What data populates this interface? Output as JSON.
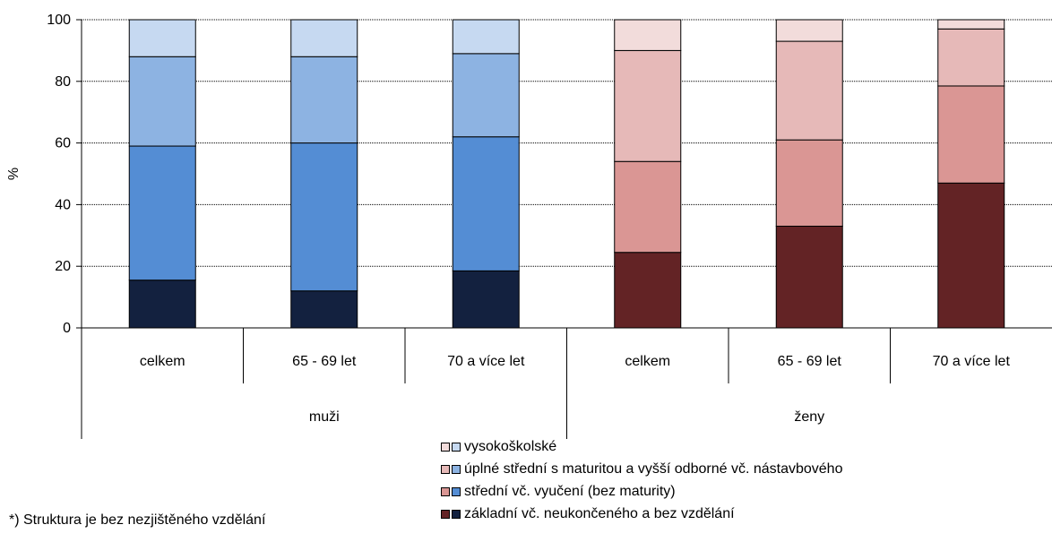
{
  "chart_data": {
    "type": "bar",
    "stacked": true,
    "ylabel": "%",
    "ylim": [
      0,
      100
    ],
    "yticks": [
      0,
      20,
      40,
      60,
      80,
      100
    ],
    "grid": "dotted horizontal",
    "categories": [
      "celkem",
      "65 - 69 let",
      "70 a více let",
      "celkem",
      "65 - 69 let",
      "70 a více let"
    ],
    "groups": [
      {
        "label": "muži",
        "categories": [
          0,
          1,
          2
        ]
      },
      {
        "label": "ženy",
        "categories": [
          3,
          4,
          5
        ]
      }
    ],
    "series": [
      {
        "name": "základní vč. neukončeného a bez vzdělání",
        "values": [
          15.5,
          12,
          18.5,
          24.5,
          33,
          47
        ],
        "colors": [
          "#13213f",
          "#13213f",
          "#13213f",
          "#632325",
          "#632325",
          "#632325"
        ]
      },
      {
        "name": "střední vč. vyučení (bez maturity)",
        "values": [
          43.5,
          48,
          43.5,
          29.5,
          28,
          31.5
        ],
        "colors": [
          "#548dd4",
          "#548dd4",
          "#548dd4",
          "#da9694",
          "#da9694",
          "#da9694"
        ]
      },
      {
        "name": "úplné střední s maturitou a vyšší odborné vč. nástavbového",
        "values": [
          29,
          28,
          27,
          36,
          32,
          18.5
        ],
        "colors": [
          "#8db3e2",
          "#8db3e2",
          "#8db3e2",
          "#e6b9b8",
          "#e6b9b8",
          "#e6b9b8"
        ]
      },
      {
        "name": "vysokoškolské",
        "values": [
          12,
          12,
          11,
          10,
          7,
          3
        ],
        "colors": [
          "#c6d9f1",
          "#c6d9f1",
          "#c6d9f1",
          "#f2dcdb",
          "#f2dcdb",
          "#f2dcdb"
        ]
      }
    ],
    "legend_order": [
      3,
      2,
      1,
      0
    ],
    "legend_position": "bottom-center"
  },
  "footnote": "*) Struktura je bez nezjištěného vzdělání"
}
